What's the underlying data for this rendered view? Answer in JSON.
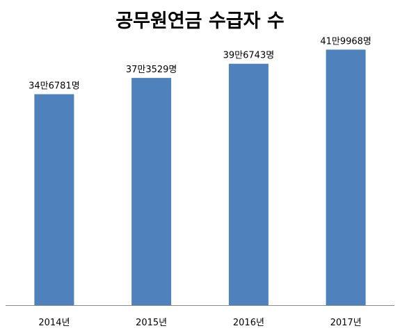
{
  "title": "공무원연금 수급자 수",
  "chart_data": {
    "type": "bar",
    "title": "공무원연금 수급자 수",
    "categories": [
      "2014년",
      "2015년",
      "2016년",
      "2017년"
    ],
    "values": [
      346781,
      373529,
      396743,
      419968
    ],
    "data_labels": [
      "34만6781명",
      "37만3529명",
      "39만6743명",
      "41만9968명"
    ],
    "xlabel": "",
    "ylabel": "",
    "ylim": [
      0,
      457000
    ],
    "grid": false,
    "legend": "none",
    "colors": {
      "bar": "#4f81bd"
    }
  }
}
